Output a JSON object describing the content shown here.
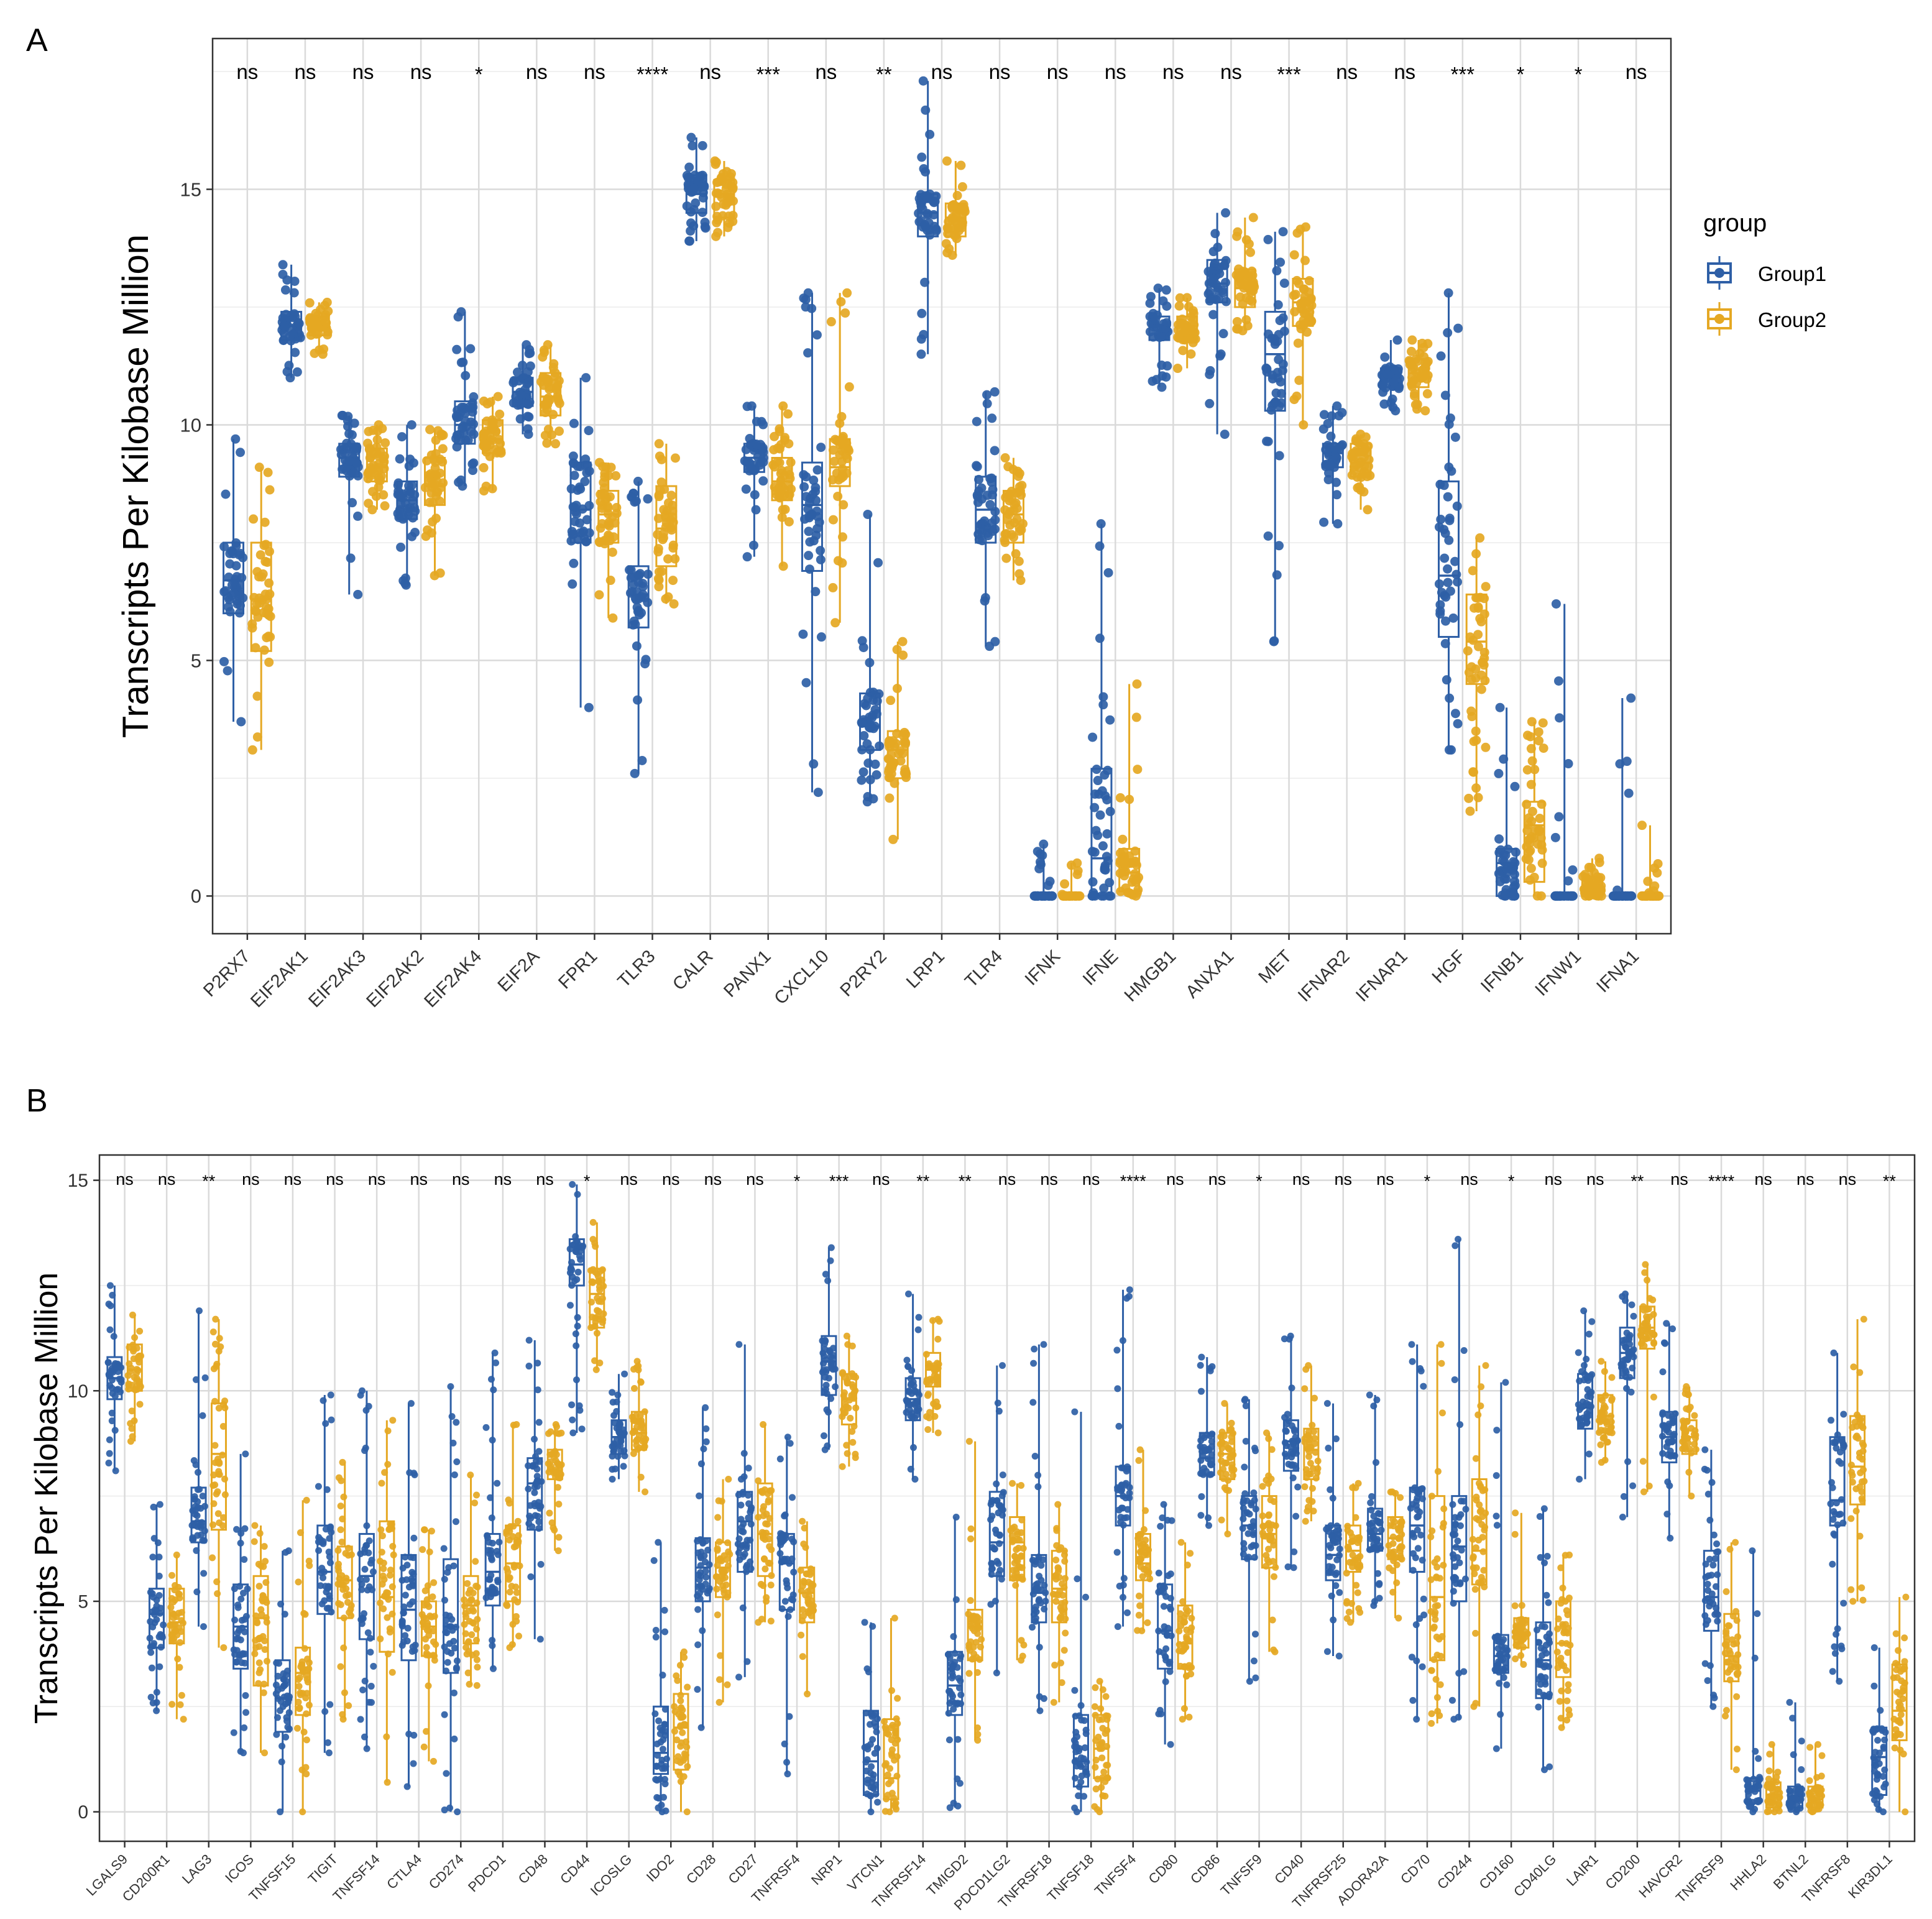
{
  "chart_data": [
    {
      "panel": "A",
      "type": "boxplot",
      "ylabel": "Transcripts Per Kilobase Million",
      "ylim": [
        -0.8,
        18.2
      ],
      "yticks": [
        0,
        5,
        10,
        15
      ],
      "grid": true,
      "legend": {
        "title": "group",
        "placement": "right"
      },
      "series_names": [
        "Group1",
        "Group2"
      ],
      "colors": {
        "Group1": "#2E5FA6",
        "Group2": "#E5A823"
      },
      "categories": [
        "P2RX7",
        "EIF2AK1",
        "EIF2AK3",
        "EIF2AK2",
        "EIF2AK4",
        "EIF2A",
        "FPR1",
        "TLR3",
        "CALR",
        "PANX1",
        "CXCL10",
        "P2RY2",
        "LRP1",
        "TLR4",
        "IFNK",
        "IFNE",
        "HMGB1",
        "ANXA1",
        "MET",
        "IFNAR2",
        "IFNAR1",
        "HGF",
        "IFNB1",
        "IFNW1",
        "IFNA1"
      ],
      "significance": [
        "ns",
        "ns",
        "ns",
        "ns",
        "*",
        "ns",
        "ns",
        "****",
        "ns",
        "***",
        "ns",
        "**",
        "ns",
        "ns",
        "ns",
        "ns",
        "ns",
        "ns",
        "***",
        "ns",
        "ns",
        "***",
        "*",
        "*",
        "ns"
      ],
      "boxes": [
        [
          [
            3.7,
            6.0,
            6.7,
            7.5,
            9.7
          ],
          [
            3.1,
            5.2,
            6.3,
            7.5,
            9.1
          ]
        ],
        [
          [
            11.0,
            11.8,
            12.1,
            12.4,
            13.4
          ],
          [
            11.5,
            11.9,
            12.1,
            12.3,
            12.6
          ]
        ],
        [
          [
            6.4,
            8.9,
            9.3,
            9.6,
            10.2
          ],
          [
            8.2,
            8.8,
            9.1,
            9.5,
            10.0
          ]
        ],
        [
          [
            6.6,
            8.0,
            8.4,
            8.8,
            10.0
          ],
          [
            6.8,
            8.3,
            8.7,
            9.3,
            9.9
          ]
        ],
        [
          [
            8.7,
            9.6,
            10.0,
            10.5,
            12.4
          ],
          [
            8.6,
            9.4,
            9.7,
            10.1,
            10.6
          ]
        ],
        [
          [
            9.8,
            10.4,
            10.7,
            11.0,
            11.7
          ],
          [
            9.6,
            10.2,
            10.6,
            11.1,
            11.7
          ]
        ],
        [
          [
            4.0,
            7.5,
            8.2,
            9.2,
            11.0
          ],
          [
            5.9,
            7.5,
            8.1,
            8.6,
            9.2
          ]
        ],
        [
          [
            2.6,
            5.7,
            6.4,
            7.0,
            8.8
          ],
          [
            6.2,
            7.0,
            7.8,
            8.7,
            9.6
          ]
        ],
        [
          [
            13.9,
            14.5,
            14.9,
            15.3,
            16.1
          ],
          [
            14.0,
            14.4,
            14.9,
            15.2,
            15.6
          ]
        ],
        [
          [
            7.2,
            9.0,
            9.3,
            9.6,
            10.4
          ],
          [
            7.0,
            8.4,
            8.8,
            9.3,
            10.4
          ]
        ],
        [
          [
            2.2,
            6.9,
            8.3,
            9.2,
            12.8
          ],
          [
            5.8,
            8.7,
            9.1,
            9.7,
            12.8
          ]
        ],
        [
          [
            2.0,
            3.1,
            3.6,
            4.3,
            8.1
          ],
          [
            1.2,
            2.5,
            3.1,
            3.5,
            5.4
          ]
        ],
        [
          [
            11.5,
            14.0,
            14.5,
            14.9,
            17.3
          ],
          [
            13.6,
            14.0,
            14.4,
            14.7,
            15.6
          ]
        ],
        [
          [
            5.3,
            7.5,
            8.2,
            8.9,
            10.7
          ],
          [
            6.7,
            7.5,
            8.1,
            8.6,
            9.3
          ]
        ],
        [
          [
            0.0,
            0.0,
            0.0,
            0.0,
            1.1
          ],
          [
            0.0,
            0.0,
            0.0,
            0.0,
            0.7
          ]
        ],
        [
          [
            0.0,
            0.0,
            0.8,
            2.7,
            7.9
          ],
          [
            0.0,
            0.1,
            0.5,
            1.0,
            4.5
          ]
        ],
        [
          [
            10.8,
            11.8,
            12.1,
            12.3,
            12.9
          ],
          [
            11.2,
            11.8,
            12.1,
            12.3,
            12.7
          ]
        ],
        [
          [
            9.8,
            12.6,
            13.0,
            13.5,
            14.5
          ],
          [
            12.0,
            12.5,
            12.9,
            13.3,
            14.4
          ]
        ],
        [
          [
            5.4,
            10.3,
            11.5,
            12.4,
            14.1
          ],
          [
            10.0,
            12.1,
            12.6,
            13.1,
            14.2
          ]
        ],
        [
          [
            7.9,
            9.1,
            9.4,
            9.6,
            10.4
          ],
          [
            8.2,
            8.9,
            9.2,
            9.6,
            9.8
          ]
        ],
        [
          [
            10.3,
            10.8,
            11.0,
            11.2,
            11.8
          ],
          [
            10.3,
            10.8,
            11.1,
            11.4,
            11.8
          ]
        ],
        [
          [
            3.1,
            5.5,
            6.8,
            8.8,
            12.8
          ],
          [
            1.8,
            4.5,
            5.4,
            6.4,
            7.6
          ]
        ],
        [
          [
            0.0,
            0.0,
            0.7,
            1.0,
            4.0
          ],
          [
            0.0,
            0.3,
            1.5,
            2.0,
            3.7
          ]
        ],
        [
          [
            0.0,
            0.0,
            0.0,
            0.0,
            6.2
          ],
          [
            0.0,
            0.0,
            0.0,
            0.4,
            0.8
          ]
        ],
        [
          [
            0.0,
            0.0,
            0.0,
            0.0,
            4.2
          ],
          [
            0.0,
            0.0,
            0.0,
            0.0,
            1.5
          ]
        ]
      ]
    },
    {
      "panel": "B",
      "type": "boxplot",
      "ylabel": "Transcripts Per Kilobase Million",
      "ylim": [
        -0.7,
        15.6
      ],
      "yticks": [
        0,
        5,
        10,
        15
      ],
      "grid": true,
      "series_names": [
        "Group1",
        "Group2"
      ],
      "colors": {
        "Group1": "#2E5FA6",
        "Group2": "#E5A823"
      },
      "categories": [
        "LGALS9",
        "CD200R1",
        "LAG3",
        "ICOS",
        "TNFSF15",
        "TIGIT",
        "TNFSF14",
        "CTLA4",
        "CD274",
        "PDCD1",
        "CD48",
        "CD44",
        "ICOSLG",
        "IDO2",
        "CD28",
        "CD27",
        "TNFRSF4",
        "NRP1",
        "VTCN1",
        "TNFRSF14",
        "TMIGD2",
        "PDCD1LG2",
        "TNFRSF18",
        "TNFSF18",
        "TNFSF4",
        "CD80",
        "CD86",
        "TNFSF9",
        "CD40",
        "TNFRSF25",
        "ADORA2A",
        "CD70",
        "CD244",
        "CD160",
        "CD40LG",
        "LAIR1",
        "CD200",
        "HAVCR2",
        "TNFRSF9",
        "HHLA2",
        "BTNL2",
        "TNFRSF8",
        "KIR3DL1"
      ],
      "significance": [
        "ns",
        "ns",
        "**",
        "ns",
        "ns",
        "ns",
        "ns",
        "ns",
        "ns",
        "ns",
        "ns",
        "*",
        "ns",
        "ns",
        "ns",
        "ns",
        "*",
        "***",
        "ns",
        "**",
        "**",
        "ns",
        "ns",
        "ns",
        "****",
        "ns",
        "ns",
        "*",
        "ns",
        "ns",
        "ns",
        "*",
        "ns",
        "*",
        "ns",
        "ns",
        "**",
        "ns",
        "****",
        "ns",
        "ns",
        "ns",
        "**"
      ],
      "boxes": [
        [
          [
            8.1,
            9.8,
            10.3,
            10.8,
            12.5
          ],
          [
            8.8,
            10.0,
            10.5,
            11.1,
            11.8
          ]
        ],
        [
          [
            2.4,
            3.9,
            4.7,
            5.3,
            7.3
          ],
          [
            2.2,
            4.0,
            4.5,
            5.3,
            6.1
          ]
        ],
        [
          [
            4.4,
            6.4,
            6.9,
            7.7,
            11.9
          ],
          [
            3.9,
            6.7,
            8.5,
            9.7,
            11.7
          ]
        ],
        [
          [
            1.4,
            3.4,
            4.4,
            5.4,
            8.5
          ],
          [
            1.4,
            3.0,
            4.6,
            5.6,
            6.8
          ]
        ],
        [
          [
            0.0,
            1.9,
            2.7,
            3.6,
            6.2
          ],
          [
            0.0,
            2.3,
            3.3,
            3.9,
            7.4
          ]
        ],
        [
          [
            1.4,
            4.7,
            5.7,
            6.8,
            9.9
          ],
          [
            2.2,
            4.6,
            5.5,
            6.3,
            8.3
          ]
        ],
        [
          [
            1.5,
            4.1,
            5.6,
            6.6,
            10.0
          ],
          [
            0.7,
            3.8,
            5.1,
            6.9,
            9.3
          ]
        ],
        [
          [
            0.6,
            3.6,
            4.8,
            6.1,
            9.7
          ],
          [
            1.2,
            3.7,
            4.4,
            5.0,
            6.7
          ]
        ],
        [
          [
            0.0,
            3.3,
            4.4,
            6.0,
            10.1
          ],
          [
            3.0,
            4.0,
            4.9,
            5.6,
            8.0
          ]
        ],
        [
          [
            3.4,
            4.9,
            5.7,
            6.6,
            10.9
          ],
          [
            3.9,
            5.0,
            5.9,
            6.8,
            9.2
          ]
        ],
        [
          [
            4.1,
            6.7,
            7.8,
            8.4,
            11.2
          ],
          [
            6.2,
            7.9,
            8.1,
            8.6,
            9.2
          ]
        ],
        [
          [
            9.0,
            12.5,
            13.0,
            13.6,
            14.9
          ],
          [
            10.5,
            11.5,
            12.3,
            12.9,
            14.0
          ]
        ],
        [
          [
            7.9,
            8.5,
            8.9,
            9.3,
            10.4
          ],
          [
            7.6,
            8.6,
            9.0,
            9.5,
            10.7
          ]
        ],
        [
          [
            0.0,
            0.9,
            1.4,
            2.5,
            6.4
          ],
          [
            0.0,
            1.0,
            2.0,
            2.8,
            3.8
          ]
        ],
        [
          [
            2.0,
            5.0,
            5.8,
            6.5,
            9.6
          ],
          [
            2.6,
            5.1,
            5.8,
            6.4,
            7.9
          ]
        ],
        [
          [
            3.2,
            5.7,
            6.9,
            7.6,
            11.1
          ],
          [
            4.5,
            5.6,
            6.6,
            7.8,
            9.2
          ]
        ],
        [
          [
            0.9,
            4.8,
            5.9,
            6.6,
            8.9
          ],
          [
            2.8,
            4.5,
            5.2,
            5.8,
            6.9
          ]
        ],
        [
          [
            8.6,
            9.9,
            10.7,
            11.3,
            13.4
          ],
          [
            8.2,
            9.2,
            9.8,
            10.4,
            11.3
          ]
        ],
        [
          [
            0.0,
            0.4,
            1.2,
            2.4,
            4.5
          ],
          [
            0.0,
            0.3,
            0.8,
            2.2,
            4.6
          ]
        ],
        [
          [
            7.9,
            9.3,
            9.8,
            10.3,
            12.3
          ],
          [
            9.0,
            10.1,
            10.5,
            10.9,
            11.7
          ]
        ],
        [
          [
            0.1,
            2.3,
            3.0,
            3.8,
            7.0
          ],
          [
            1.7,
            3.6,
            4.4,
            4.8,
            8.8
          ]
        ],
        [
          [
            3.3,
            5.6,
            6.4,
            7.6,
            10.6
          ],
          [
            3.6,
            5.5,
            6.4,
            7.0,
            7.8
          ]
        ],
        [
          [
            2.4,
            4.5,
            5.2,
            6.1,
            11.1
          ],
          [
            2.6,
            4.5,
            5.3,
            6.2,
            7.3
          ]
        ],
        [
          [
            0.0,
            0.6,
            1.2,
            2.3,
            9.5
          ],
          [
            0.0,
            0.8,
            1.5,
            2.3,
            3.1
          ]
        ],
        [
          [
            4.4,
            6.8,
            7.5,
            8.2,
            12.4
          ],
          [
            4.3,
            5.5,
            5.9,
            6.6,
            8.6
          ]
        ],
        [
          [
            1.6,
            3.4,
            4.3,
            5.4,
            7.3
          ],
          [
            2.2,
            3.4,
            4.0,
            4.9,
            6.4
          ]
        ],
        [
          [
            6.8,
            8.0,
            8.4,
            9.0,
            10.8
          ],
          [
            6.6,
            7.9,
            8.5,
            9.0,
            9.7
          ]
        ],
        [
          [
            3.1,
            6.0,
            6.8,
            7.5,
            9.8
          ],
          [
            3.8,
            5.8,
            6.6,
            7.5,
            9.0
          ]
        ],
        [
          [
            5.8,
            8.1,
            8.8,
            9.3,
            11.3
          ],
          [
            6.9,
            7.9,
            8.6,
            9.1,
            10.6
          ]
        ],
        [
          [
            3.7,
            5.5,
            6.1,
            6.8,
            9.7
          ],
          [
            4.5,
            5.7,
            6.2,
            6.8,
            7.8
          ]
        ],
        [
          [
            4.9,
            6.2,
            6.6,
            7.2,
            9.9
          ],
          [
            4.6,
            6.0,
            6.5,
            7.0,
            7.6
          ]
        ],
        [
          [
            2.2,
            5.7,
            6.8,
            7.7,
            11.1
          ],
          [
            2.1,
            3.6,
            5.1,
            7.5,
            11.1
          ]
        ],
        [
          [
            2.2,
            5.0,
            6.3,
            7.5,
            13.6
          ],
          [
            2.5,
            5.4,
            6.2,
            7.9,
            10.6
          ]
        ],
        [
          [
            1.5,
            3.3,
            3.7,
            4.2,
            10.2
          ],
          [
            3.5,
            3.9,
            4.2,
            4.6,
            7.1
          ]
        ],
        [
          [
            1.0,
            2.7,
            3.6,
            4.5,
            7.2
          ],
          [
            2.0,
            3.2,
            4.0,
            5.0,
            6.1
          ]
        ],
        [
          [
            7.9,
            9.1,
            9.6,
            10.4,
            11.9
          ],
          [
            8.3,
            9.0,
            9.4,
            9.9,
            10.7
          ]
        ],
        [
          [
            7.0,
            10.3,
            10.9,
            11.5,
            12.3
          ],
          [
            7.6,
            11.0,
            11.5,
            12.0,
            13.0
          ]
        ],
        [
          [
            6.5,
            8.3,
            8.9,
            9.5,
            11.6
          ],
          [
            7.5,
            8.5,
            8.9,
            9.3,
            10.1
          ]
        ],
        [
          [
            2.5,
            4.3,
            5.1,
            6.2,
            8.6
          ],
          [
            1.0,
            3.1,
            3.7,
            4.7,
            6.4
          ]
        ],
        [
          [
            0.0,
            0.2,
            0.5,
            0.8,
            6.2
          ],
          [
            0.0,
            0.1,
            0.4,
            0.7,
            1.6
          ]
        ],
        [
          [
            0.0,
            0.1,
            0.3,
            0.6,
            2.6
          ],
          [
            0.0,
            0.1,
            0.3,
            0.6,
            1.6
          ]
        ],
        [
          [
            3.1,
            6.8,
            7.4,
            8.9,
            10.9
          ],
          [
            5.0,
            7.3,
            8.2,
            9.4,
            11.7
          ]
        ],
        [
          [
            0.0,
            0.4,
            1.3,
            2.0,
            3.9
          ],
          [
            0.0,
            1.7,
            2.4,
            3.5,
            5.1
          ]
        ]
      ]
    }
  ],
  "panel_labels": {
    "a": "A",
    "b": "B"
  },
  "legend": {
    "title": "group",
    "items": [
      "Group1",
      "Group2"
    ]
  }
}
